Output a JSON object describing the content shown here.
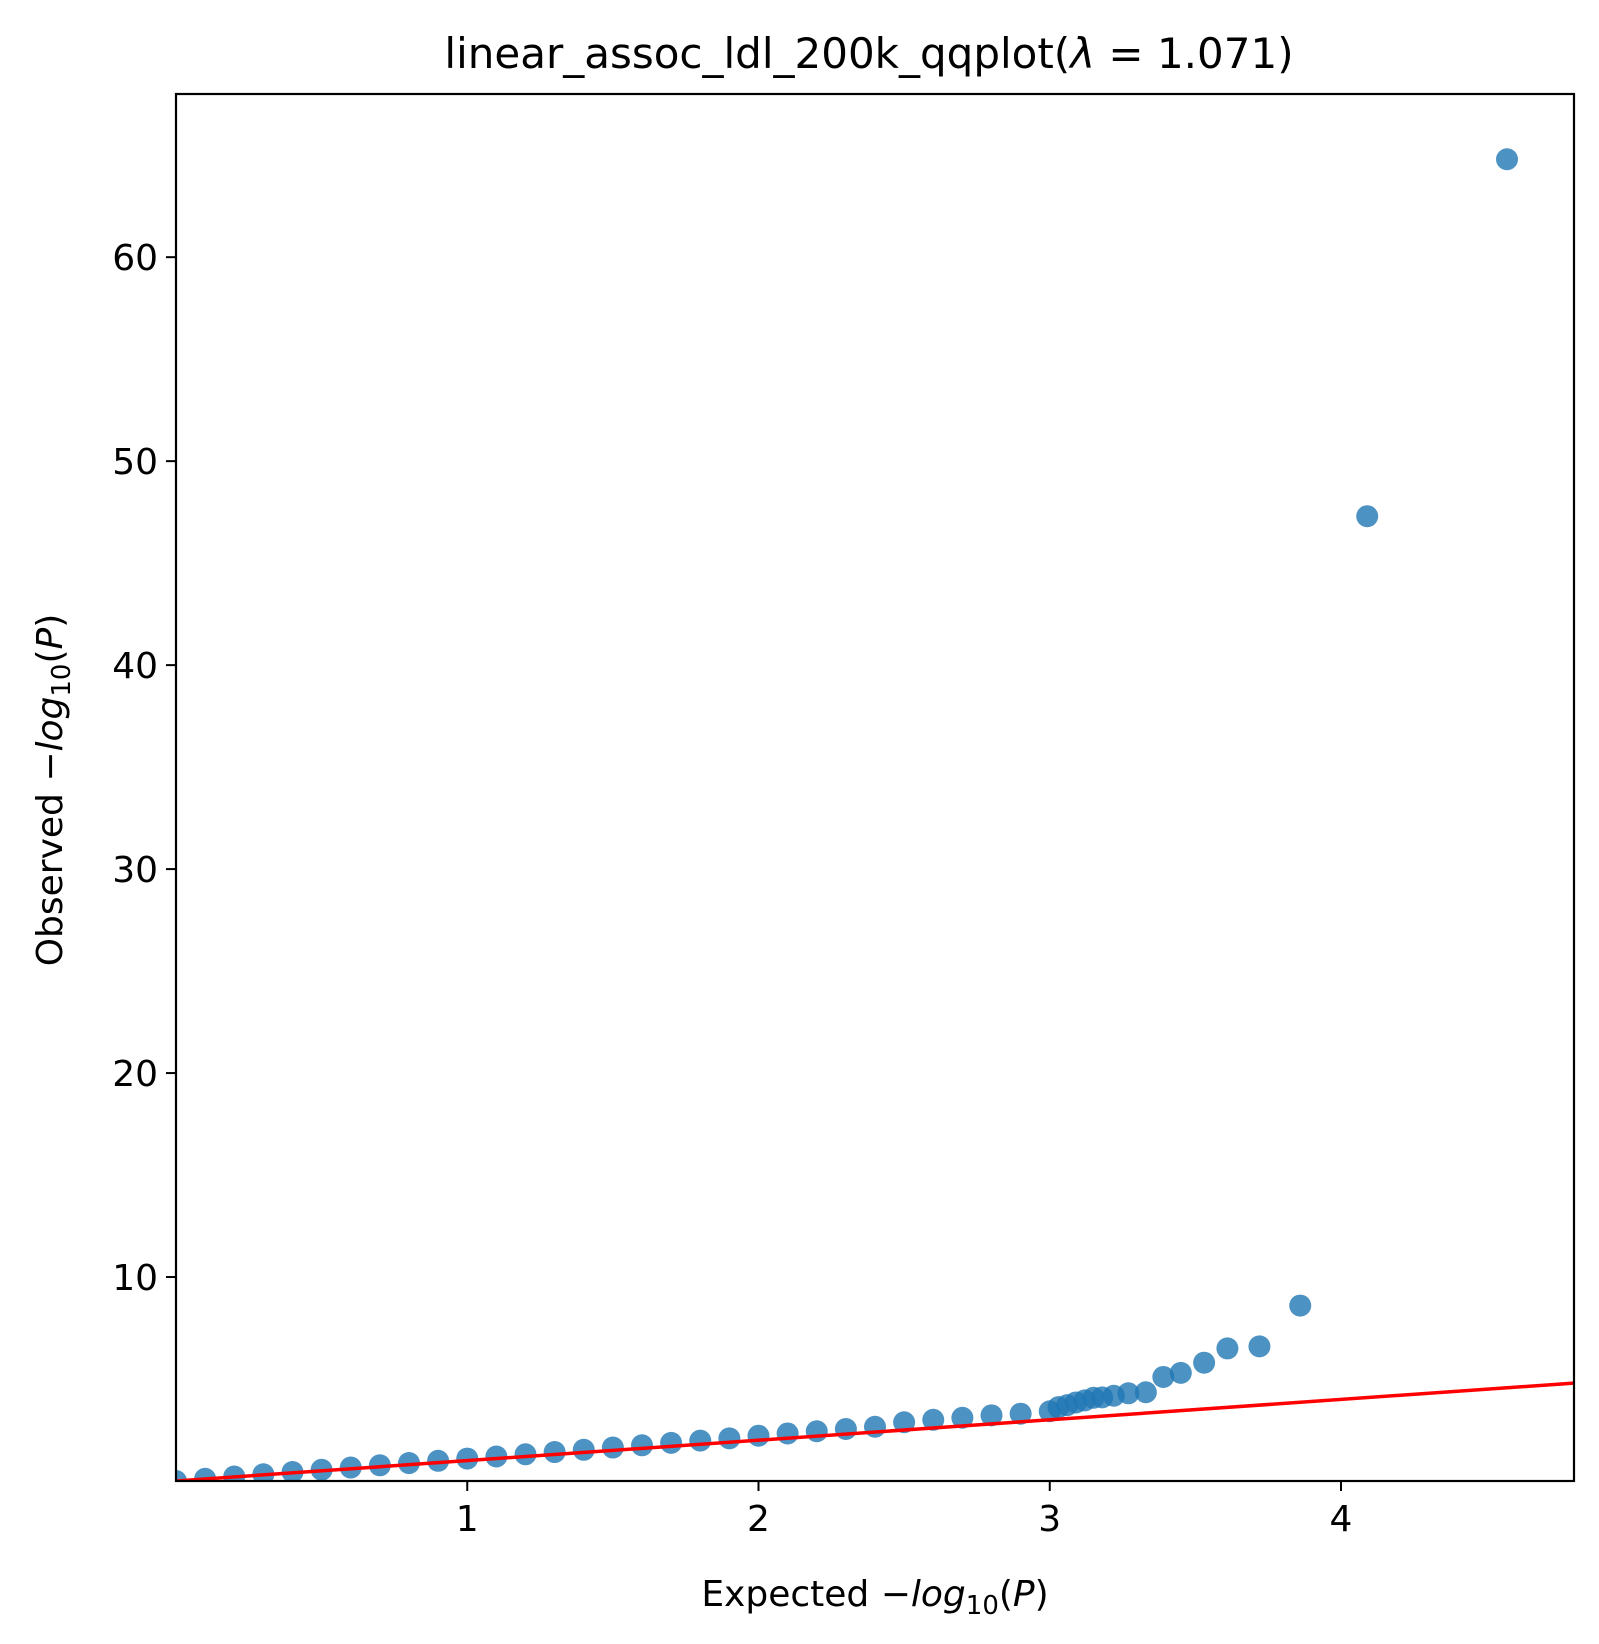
{
  "chart_data": {
    "type": "scatter",
    "title_prefix": "linear_assoc_ldl_200k_qqplot(",
    "title_lambda_symbol": "λ",
    "title_lambda_value": " = 1.071)",
    "xlabel_prefix": "Expected −",
    "ylabel_prefix": "Observed −",
    "label_log": "log",
    "label_subscript": "10",
    "label_paren": "(",
    "label_p": "P",
    "label_close": ")",
    "xlim": [
      0.0,
      4.8
    ],
    "ylim": [
      0.0,
      68.0
    ],
    "xticks": [
      {
        "value": 1,
        "label": "1"
      },
      {
        "value": 2,
        "label": "2"
      },
      {
        "value": 3,
        "label": "3"
      },
      {
        "value": 4,
        "label": "4"
      }
    ],
    "yticks": [
      {
        "value": 10,
        "label": "10"
      },
      {
        "value": 20,
        "label": "20"
      },
      {
        "value": 30,
        "label": "30"
      },
      {
        "value": 40,
        "label": "40"
      },
      {
        "value": 50,
        "label": "50"
      },
      {
        "value": 60,
        "label": "60"
      }
    ],
    "grid": false,
    "point_color": "#1f77b4",
    "line_color": "#ff0000",
    "reference_line": {
      "slope": 1.0,
      "intercept": 0.0
    },
    "series": [
      {
        "x": [
          0.0,
          0.1,
          0.2,
          0.3,
          0.4,
          0.5,
          0.6,
          0.7,
          0.8,
          0.9,
          1.0,
          1.1,
          1.2,
          1.3,
          1.4,
          1.5,
          1.6,
          1.7,
          1.8,
          1.9,
          2.0,
          2.1,
          2.2,
          2.3,
          2.4,
          2.5,
          2.6,
          2.7,
          2.8,
          2.9,
          3.0,
          3.03,
          3.06,
          3.09,
          3.12,
          3.15,
          3.18,
          3.22,
          3.27,
          3.33,
          3.39,
          3.45,
          3.53,
          3.61,
          3.72,
          3.86,
          4.09,
          4.57
        ],
        "y": [
          0.0,
          0.11,
          0.22,
          0.33,
          0.44,
          0.55,
          0.66,
          0.77,
          0.88,
          0.99,
          1.1,
          1.2,
          1.31,
          1.42,
          1.53,
          1.64,
          1.75,
          1.87,
          1.98,
          2.09,
          2.22,
          2.33,
          2.44,
          2.55,
          2.66,
          2.88,
          3.0,
          3.1,
          3.22,
          3.3,
          3.42,
          3.62,
          3.72,
          3.85,
          3.95,
          4.08,
          4.1,
          4.18,
          4.3,
          4.35,
          5.1,
          5.3,
          5.8,
          6.5,
          6.6,
          8.6,
          47.3,
          64.8
        ]
      }
    ]
  }
}
